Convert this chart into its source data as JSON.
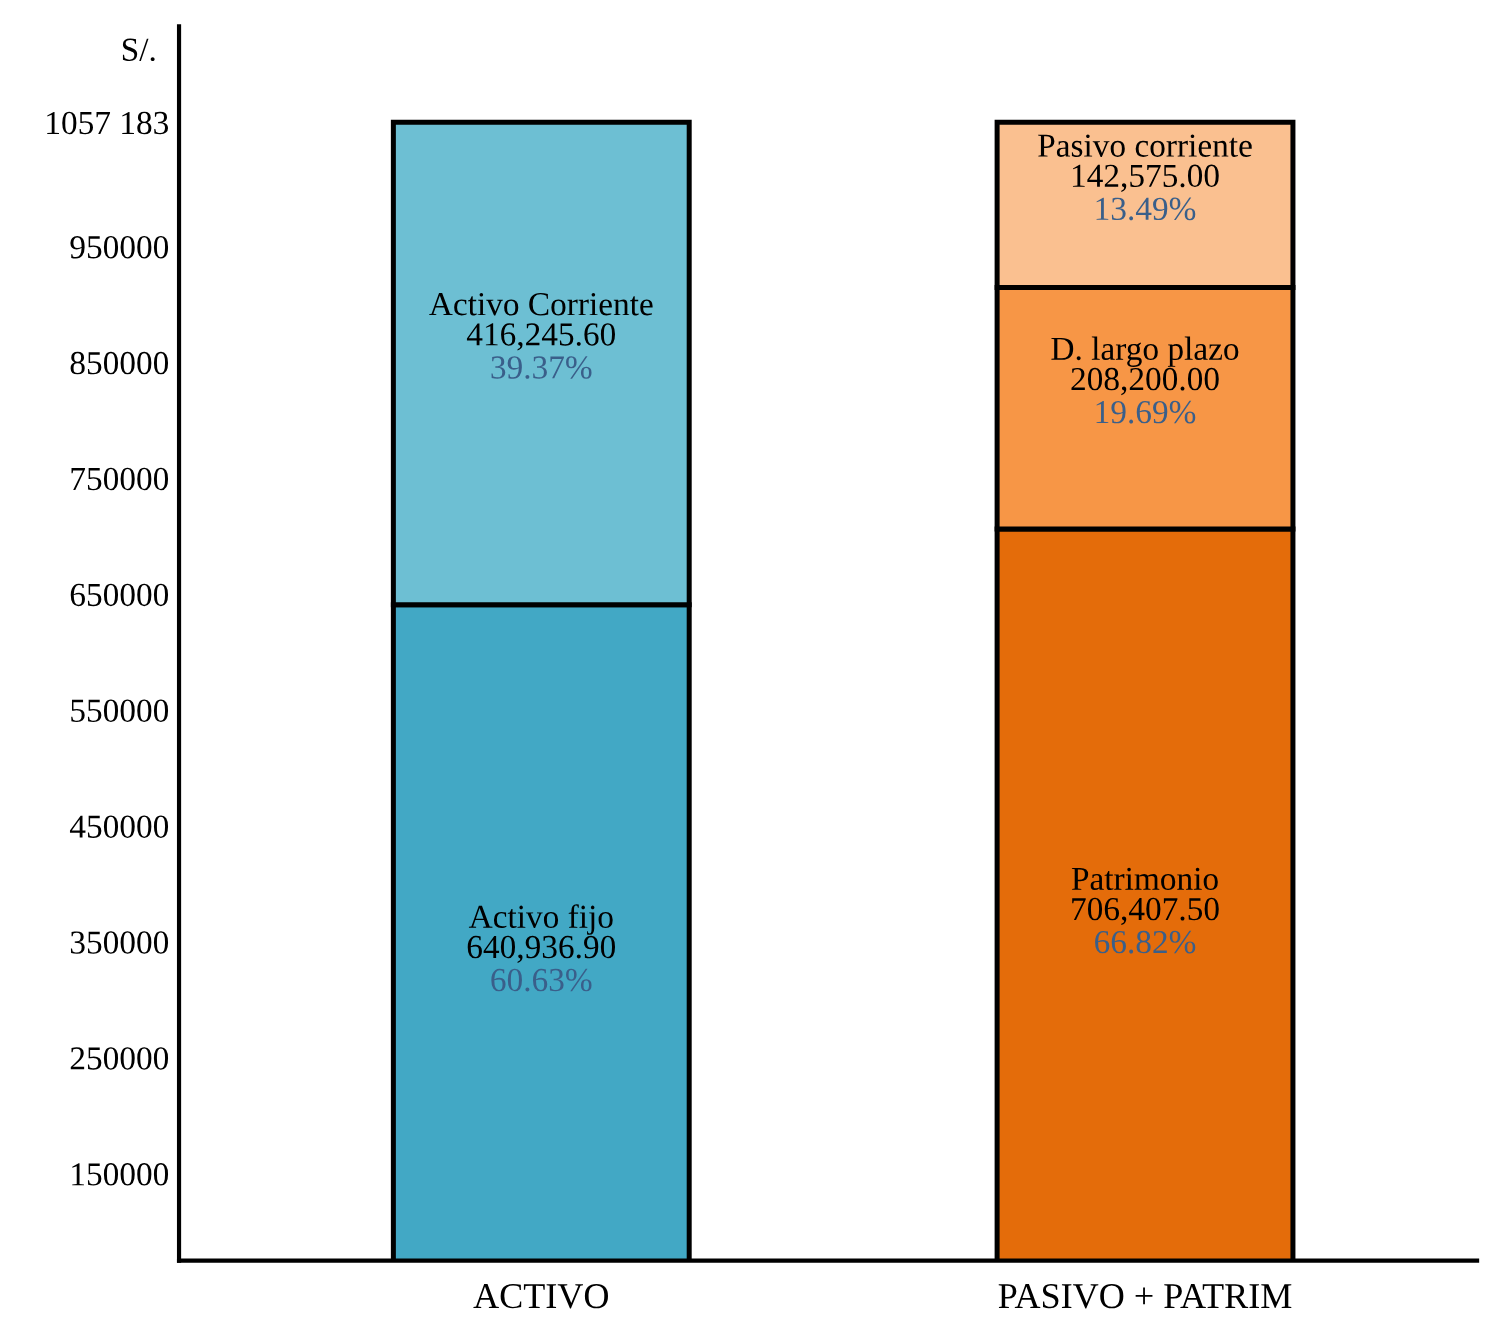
{
  "chart_data": {
    "type": "bar",
    "stacked": true,
    "ylabel": "S/.",
    "categories": [
      "ACTIVO",
      "PASIVO + PATRIM"
    ],
    "series": [
      {
        "name": "Activo fijo",
        "color": "#42a8c5",
        "values": [
          640936.9,
          null
        ],
        "value_labels": [
          "640,936.90",
          null
        ]
      },
      {
        "name": "Patrimonio",
        "color": "#e46c0a",
        "values": [
          null,
          706407.5
        ],
        "value_labels": [
          null,
          "706,407.50"
        ]
      },
      {
        "name": "Activo Corriente",
        "color": "#6dbfd3",
        "values": [
          416245.6,
          null
        ],
        "value_labels": [
          "416,245.60",
          null
        ]
      },
      {
        "name": "D. largo plazo",
        "color": "#f79646",
        "values": [
          null,
          208200.0
        ],
        "value_labels": [
          null,
          "208,200.00"
        ]
      },
      {
        "name": "Pasivo corriente",
        "color": "#fac090",
        "values": [
          null,
          142575.0
        ],
        "value_labels": [
          null,
          "142,575.00"
        ]
      }
    ],
    "annotations": [
      "60.63%",
      "66.82%",
      "39.37%",
      "19.69%",
      "13.49%"
    ],
    "ylim": [
      75000,
      1140000
    ],
    "yticks": [
      150000,
      250000,
      350000,
      450000,
      550000,
      650000,
      750000,
      850000,
      950000,
      {
        "value": 1057183,
        "label": "1057 183"
      }
    ],
    "grid": false,
    "legend": false
  }
}
